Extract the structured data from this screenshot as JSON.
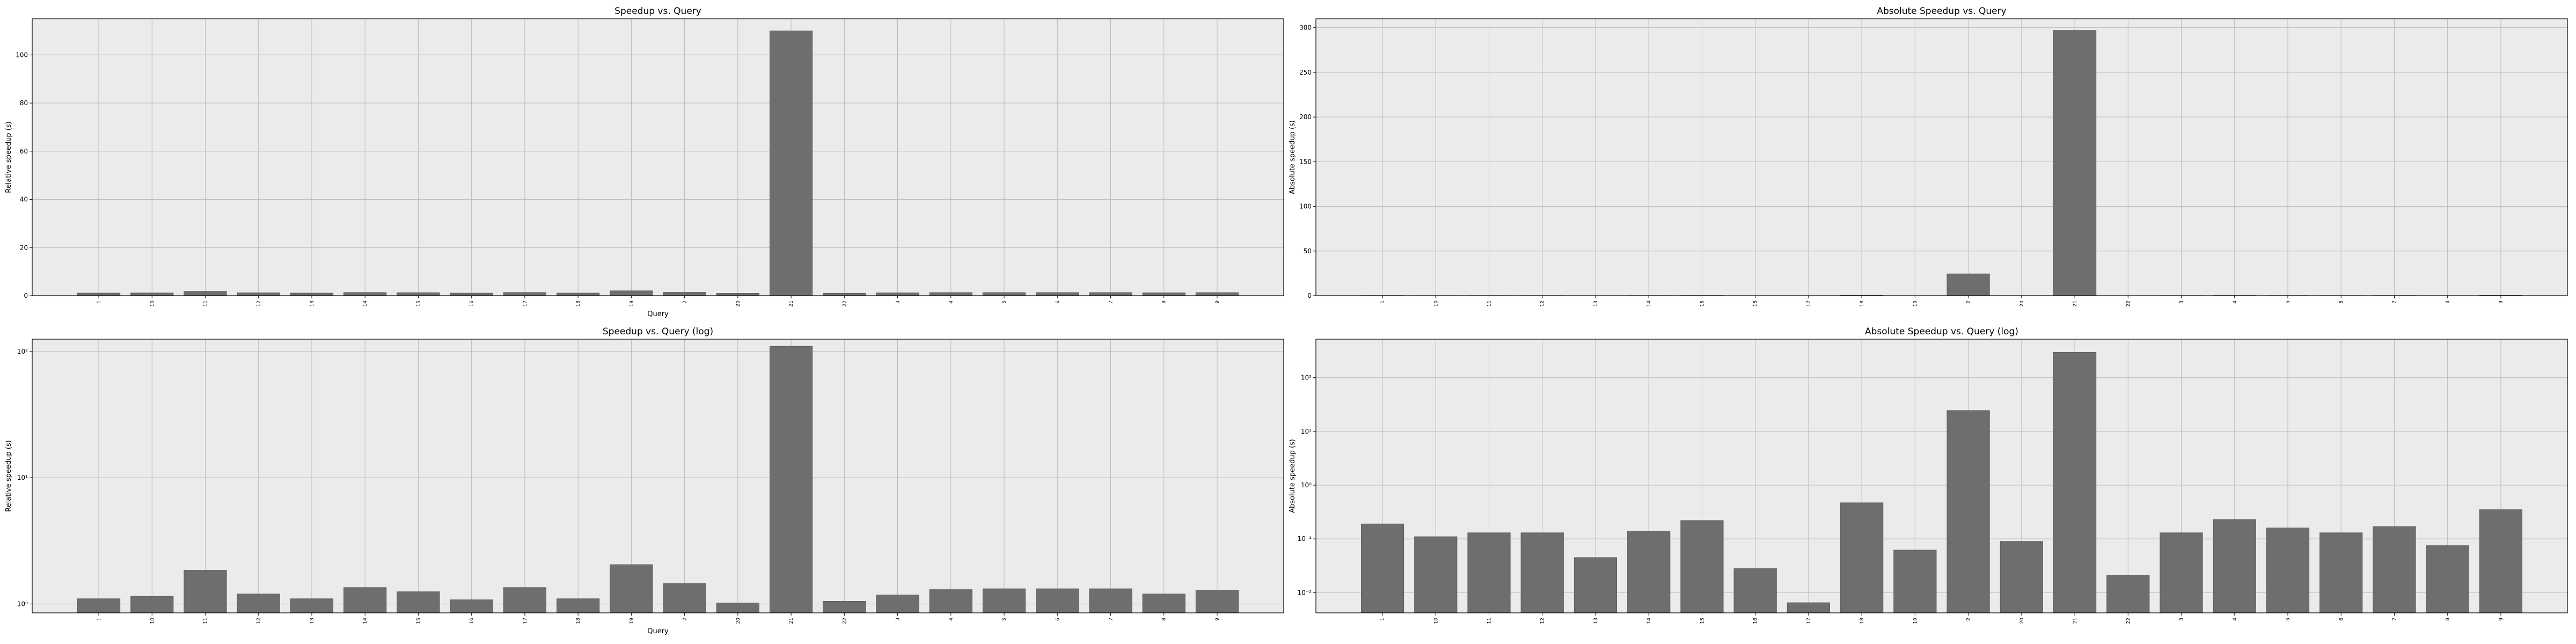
{
  "chart_data": [
    {
      "id": "rel-linear",
      "type": "bar",
      "title": "Speedup vs. Query",
      "xlabel": "Query",
      "ylabel": "Relative speedup (s)",
      "scale": "linear",
      "ylim": [
        0,
        115
      ],
      "yticks": [
        0,
        20,
        40,
        60,
        80,
        100
      ],
      "yticklabels": [
        "0",
        "20",
        "40",
        "60",
        "80",
        "100"
      ],
      "grid": true,
      "bar_color": "#6e6e6e",
      "background": "#ebebeb",
      "categories": [
        "1",
        "10",
        "11",
        "12",
        "13",
        "14",
        "15",
        "16",
        "17",
        "18",
        "19",
        "2",
        "20",
        "21",
        "22",
        "3",
        "4",
        "5",
        "6",
        "7",
        "8",
        "9"
      ],
      "values": [
        1.1,
        1.15,
        1.85,
        1.2,
        1.1,
        1.35,
        1.25,
        1.08,
        1.35,
        1.1,
        2.05,
        1.45,
        1.02,
        110,
        1.05,
        1.18,
        1.3,
        1.32,
        1.32,
        1.32,
        1.2,
        1.28
      ]
    },
    {
      "id": "abs-linear",
      "type": "bar",
      "title": "Absolute Speedup vs. Query",
      "xlabel": "",
      "ylabel": "Absolute speedup (s)",
      "scale": "linear",
      "ylim": [
        0,
        310
      ],
      "yticks": [
        0,
        50,
        100,
        150,
        200,
        250,
        300
      ],
      "yticklabels": [
        "0",
        "50",
        "100",
        "150",
        "200",
        "250",
        "300"
      ],
      "grid": true,
      "bar_color": "#6e6e6e",
      "background": "#ebebeb",
      "categories": [
        "1",
        "10",
        "11",
        "12",
        "13",
        "14",
        "15",
        "16",
        "17",
        "18",
        "19",
        "2",
        "20",
        "21",
        "22",
        "3",
        "4",
        "5",
        "6",
        "7",
        "8",
        "9"
      ],
      "values": [
        0.19,
        0.11,
        0.13,
        0.13,
        0.045,
        0.14,
        0.22,
        0.028,
        0.0065,
        0.47,
        0.062,
        24.5,
        0.09,
        297,
        0.021,
        0.13,
        0.23,
        0.16,
        0.13,
        0.17,
        0.075,
        0.35
      ]
    },
    {
      "id": "rel-log",
      "type": "bar",
      "title": "Speedup vs. Query (log)",
      "xlabel": "Query",
      "ylabel": "Relative speedup (s)",
      "scale": "log",
      "ylim": [
        0.85,
        125
      ],
      "yticks": [
        1,
        10,
        100
      ],
      "yticklabels": [
        "10⁰",
        "10¹",
        "10²"
      ],
      "grid": true,
      "bar_color": "#6e6e6e",
      "background": "#ebebeb",
      "categories": [
        "1",
        "10",
        "11",
        "12",
        "13",
        "14",
        "15",
        "16",
        "17",
        "18",
        "19",
        "2",
        "20",
        "21",
        "22",
        "3",
        "4",
        "5",
        "6",
        "7",
        "8",
        "9"
      ],
      "values": [
        1.1,
        1.15,
        1.85,
        1.2,
        1.1,
        1.35,
        1.25,
        1.08,
        1.35,
        1.1,
        2.05,
        1.45,
        1.02,
        110,
        1.05,
        1.18,
        1.3,
        1.32,
        1.32,
        1.32,
        1.2,
        1.28
      ]
    },
    {
      "id": "abs-log",
      "type": "bar",
      "title": "Absolute Speedup vs. Query (log)",
      "xlabel": "",
      "ylabel": "Absolute speedup (s)",
      "scale": "log",
      "ylim": [
        0.0042,
        520
      ],
      "yticks": [
        0.01,
        0.1,
        1,
        10,
        100
      ],
      "yticklabels": [
        "10⁻²",
        "10⁻¹",
        "10⁰",
        "10¹",
        "10²"
      ],
      "grid": true,
      "bar_color": "#6e6e6e",
      "background": "#ebebeb",
      "categories": [
        "1",
        "10",
        "11",
        "12",
        "13",
        "14",
        "15",
        "16",
        "17",
        "18",
        "19",
        "2",
        "20",
        "21",
        "22",
        "3",
        "4",
        "5",
        "6",
        "7",
        "8",
        "9"
      ],
      "values": [
        0.19,
        0.11,
        0.13,
        0.13,
        0.045,
        0.14,
        0.22,
        0.028,
        0.0065,
        0.47,
        0.062,
        24.5,
        0.09,
        297,
        0.021,
        0.13,
        0.23,
        0.16,
        0.13,
        0.17,
        0.075,
        0.35
      ]
    }
  ]
}
